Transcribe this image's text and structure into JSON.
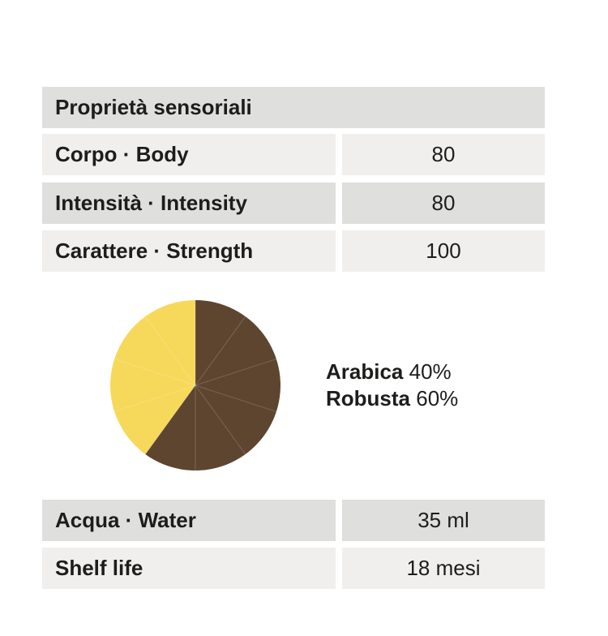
{
  "sensory_table": {
    "title": "Proprietà sensoriali",
    "rows": [
      [
        "Corpo · Body",
        "80"
      ],
      [
        "Intensità · Intensity",
        "80"
      ],
      [
        "Carattere · Strength",
        "100"
      ]
    ]
  },
  "chart_data": {
    "type": "pie",
    "categories": [
      "Arabica",
      "Robusta"
    ],
    "values": [
      40,
      60
    ],
    "value_labels": [
      "40%",
      "60%"
    ],
    "colors": [
      "#f6d95a",
      "#5e452f"
    ]
  },
  "specs_table": {
    "rows": [
      [
        "Acqua · Water",
        "35 ml"
      ],
      [
        "Shelf life",
        "18 mesi"
      ]
    ]
  }
}
